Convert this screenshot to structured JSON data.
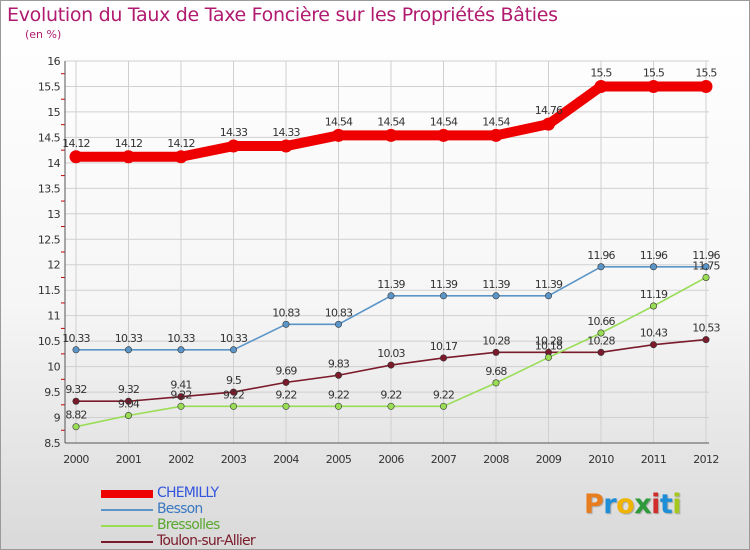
{
  "header": {
    "title": "Evolution du Taux de Taxe Foncière sur les Propriétés Bâties",
    "unit": "(en %)"
  },
  "logo": {
    "letters": [
      "P",
      "r",
      "o",
      "x",
      "i",
      "t",
      "i"
    ],
    "colors": [
      "#e87d1e",
      "#1e8fd6",
      "#f0b400",
      "#2f9a3a",
      "#d02c2c",
      "#1e8fd6",
      "#a4c81e"
    ]
  },
  "chart_data": {
    "type": "line",
    "title": "Evolution du Taux de Taxe Foncière sur les Propriétés Bâties",
    "ylabel": "(en %)",
    "xlabel": "",
    "x": [
      "2000",
      "2001",
      "2002",
      "2003",
      "2004",
      "2005",
      "2006",
      "2007",
      "2008",
      "2009",
      "2010",
      "2011",
      "2012"
    ],
    "ylim": [
      8.5,
      16
    ],
    "yticks": [
      "8.5",
      "9",
      "9.5",
      "10",
      "10.5",
      "11",
      "11.5",
      "12",
      "12.5",
      "13",
      "13.5",
      "14",
      "14.5",
      "15",
      "15.5",
      "16"
    ],
    "legend": "bottom-left",
    "series": [
      {
        "name": "CHEMILLY",
        "color": "#ee0000",
        "values": [
          14.12,
          14.12,
          14.12,
          14.33,
          14.33,
          14.54,
          14.54,
          14.54,
          14.54,
          14.76,
          15.5,
          15.5,
          15.5
        ],
        "labels": [
          "14.12",
          "14.12",
          "14.12",
          "14.33",
          "14.33",
          "14.54",
          "14.54",
          "14.54",
          "14.54",
          "14.76",
          "15.5",
          "15.5",
          "15.5"
        ]
      },
      {
        "name": "Besson",
        "color": "#5b95c8",
        "values": [
          10.33,
          10.33,
          10.33,
          10.33,
          10.83,
          10.83,
          11.39,
          11.39,
          11.39,
          11.39,
          11.96,
          11.96,
          11.96
        ],
        "labels": [
          "10.33",
          "10.33",
          "10.33",
          "10.33",
          "10.83",
          "10.83",
          "11.39",
          "11.39",
          "11.39",
          "11.39",
          "11.96",
          "11.96",
          "11.96"
        ]
      },
      {
        "name": "Bressolles",
        "color": "#99dd55",
        "values": [
          8.82,
          9.04,
          9.22,
          9.22,
          9.22,
          9.22,
          9.22,
          9.22,
          9.68,
          10.18,
          10.66,
          11.19,
          11.75
        ],
        "labels": [
          "8.82",
          "9.04",
          "9.22",
          "9.22",
          "9.22",
          "9.22",
          "9.22",
          "9.22",
          "9.68",
          "10.18",
          "10.66",
          "11.19",
          "11.75"
        ]
      },
      {
        "name": "Toulon-sur-Allier",
        "color": "#7a1a2a",
        "values": [
          9.32,
          9.32,
          9.41,
          9.5,
          9.69,
          9.83,
          10.03,
          10.17,
          10.28,
          10.28,
          10.28,
          10.43,
          10.53
        ],
        "labels": [
          "9.32",
          "9.32",
          "9.41",
          "9.5",
          "9.69",
          "9.83",
          "10.03",
          "10.17",
          "10.28",
          "10.28",
          "10.28",
          "10.43",
          "10.53"
        ]
      }
    ]
  }
}
